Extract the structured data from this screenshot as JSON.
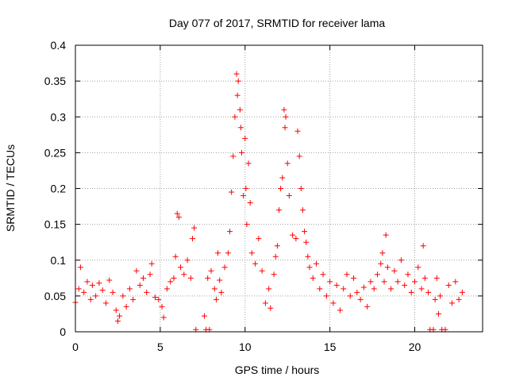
{
  "chart_data": {
    "type": "scatter",
    "title": "Day 077 of 2017, SRMTID for receiver lama",
    "xlabel": "GPS time / hours",
    "ylabel": "SRMTID / TECUs",
    "xlim": [
      0,
      24
    ],
    "ylim": [
      0,
      0.4
    ],
    "grid": true,
    "xticks": [
      0,
      5,
      10,
      15,
      20
    ],
    "xtick_labels": [
      "0",
      "5",
      "10",
      "15",
      "20"
    ],
    "yticks": [
      0,
      0.05,
      0.1,
      0.15,
      0.2,
      0.25,
      0.3,
      0.35,
      0.4
    ],
    "ytick_labels": [
      "0",
      "0.05",
      "0.1",
      "0.15",
      "0.2",
      "0.25",
      "0.3",
      "0.35",
      "0.4"
    ],
    "marker": "+",
    "color": "#ff0000",
    "series": [
      {
        "name": "SRMTID",
        "points": [
          [
            0.0,
            0.041
          ],
          [
            0.2,
            0.06
          ],
          [
            0.3,
            0.09
          ],
          [
            0.5,
            0.055
          ],
          [
            0.7,
            0.07
          ],
          [
            0.9,
            0.045
          ],
          [
            1.0,
            0.065
          ],
          [
            1.2,
            0.05
          ],
          [
            1.4,
            0.068
          ],
          [
            1.6,
            0.058
          ],
          [
            1.8,
            0.04
          ],
          [
            2.0,
            0.072
          ],
          [
            2.2,
            0.055
          ],
          [
            2.4,
            0.03
          ],
          [
            2.5,
            0.015
          ],
          [
            2.6,
            0.022
          ],
          [
            2.8,
            0.05
          ],
          [
            3.0,
            0.035
          ],
          [
            3.2,
            0.06
          ],
          [
            3.4,
            0.045
          ],
          [
            3.6,
            0.085
          ],
          [
            3.8,
            0.065
          ],
          [
            4.0,
            0.075
          ],
          [
            4.2,
            0.055
          ],
          [
            4.4,
            0.08
          ],
          [
            4.5,
            0.095
          ],
          [
            4.7,
            0.048
          ],
          [
            4.9,
            0.045
          ],
          [
            5.1,
            0.035
          ],
          [
            5.2,
            0.02
          ],
          [
            5.4,
            0.06
          ],
          [
            5.6,
            0.07
          ],
          [
            5.8,
            0.075
          ],
          [
            5.9,
            0.105
          ],
          [
            6.0,
            0.165
          ],
          [
            6.1,
            0.16
          ],
          [
            6.2,
            0.09
          ],
          [
            6.4,
            0.08
          ],
          [
            6.6,
            0.1
          ],
          [
            6.8,
            0.075
          ],
          [
            6.9,
            0.13
          ],
          [
            7.0,
            0.145
          ],
          [
            7.1,
            0.003
          ],
          [
            7.6,
            0.022
          ],
          [
            7.7,
            0.003
          ],
          [
            7.8,
            0.075
          ],
          [
            7.9,
            0.003
          ],
          [
            8.0,
            0.085
          ],
          [
            8.2,
            0.06
          ],
          [
            8.3,
            0.045
          ],
          [
            8.4,
            0.11
          ],
          [
            8.5,
            0.072
          ],
          [
            8.6,
            0.055
          ],
          [
            8.8,
            0.09
          ],
          [
            9.0,
            0.11
          ],
          [
            9.1,
            0.14
          ],
          [
            9.2,
            0.195
          ],
          [
            9.3,
            0.245
          ],
          [
            9.4,
            0.3
          ],
          [
            9.5,
            0.36
          ],
          [
            9.55,
            0.33
          ],
          [
            9.6,
            0.35
          ],
          [
            9.7,
            0.31
          ],
          [
            9.75,
            0.285
          ],
          [
            9.8,
            0.25
          ],
          [
            9.9,
            0.19
          ],
          [
            10.0,
            0.27
          ],
          [
            10.05,
            0.2
          ],
          [
            10.1,
            0.15
          ],
          [
            10.2,
            0.235
          ],
          [
            10.3,
            0.18
          ],
          [
            10.4,
            0.11
          ],
          [
            10.6,
            0.095
          ],
          [
            10.8,
            0.13
          ],
          [
            11.0,
            0.085
          ],
          [
            11.2,
            0.04
          ],
          [
            11.4,
            0.06
          ],
          [
            11.5,
            0.033
          ],
          [
            11.7,
            0.08
          ],
          [
            11.8,
            0.105
          ],
          [
            11.9,
            0.12
          ],
          [
            12.0,
            0.17
          ],
          [
            12.1,
            0.2
          ],
          [
            12.2,
            0.215
          ],
          [
            12.3,
            0.31
          ],
          [
            12.35,
            0.285
          ],
          [
            12.4,
            0.3
          ],
          [
            12.5,
            0.235
          ],
          [
            12.6,
            0.19
          ],
          [
            12.8,
            0.135
          ],
          [
            13.0,
            0.13
          ],
          [
            13.1,
            0.28
          ],
          [
            13.2,
            0.245
          ],
          [
            13.3,
            0.2
          ],
          [
            13.4,
            0.17
          ],
          [
            13.5,
            0.14
          ],
          [
            13.6,
            0.125
          ],
          [
            13.7,
            0.105
          ],
          [
            13.8,
            0.09
          ],
          [
            14.0,
            0.075
          ],
          [
            14.2,
            0.095
          ],
          [
            14.4,
            0.06
          ],
          [
            14.6,
            0.08
          ],
          [
            14.8,
            0.05
          ],
          [
            15.0,
            0.07
          ],
          [
            15.2,
            0.04
          ],
          [
            15.4,
            0.065
          ],
          [
            15.6,
            0.03
          ],
          [
            15.8,
            0.06
          ],
          [
            16.0,
            0.08
          ],
          [
            16.2,
            0.05
          ],
          [
            16.4,
            0.075
          ],
          [
            16.6,
            0.055
          ],
          [
            16.8,
            0.045
          ],
          [
            17.0,
            0.062
          ],
          [
            17.2,
            0.035
          ],
          [
            17.4,
            0.07
          ],
          [
            17.6,
            0.06
          ],
          [
            17.8,
            0.08
          ],
          [
            18.0,
            0.095
          ],
          [
            18.1,
            0.11
          ],
          [
            18.2,
            0.07
          ],
          [
            18.3,
            0.135
          ],
          [
            18.4,
            0.09
          ],
          [
            18.6,
            0.06
          ],
          [
            18.8,
            0.085
          ],
          [
            19.0,
            0.07
          ],
          [
            19.2,
            0.1
          ],
          [
            19.4,
            0.065
          ],
          [
            19.6,
            0.08
          ],
          [
            19.8,
            0.055
          ],
          [
            20.0,
            0.07
          ],
          [
            20.2,
            0.09
          ],
          [
            20.4,
            0.06
          ],
          [
            20.5,
            0.12
          ],
          [
            20.6,
            0.075
          ],
          [
            20.8,
            0.055
          ],
          [
            20.9,
            0.003
          ],
          [
            21.1,
            0.003
          ],
          [
            21.2,
            0.045
          ],
          [
            21.3,
            0.075
          ],
          [
            21.4,
            0.025
          ],
          [
            21.5,
            0.05
          ],
          [
            21.6,
            0.003
          ],
          [
            21.8,
            0.003
          ],
          [
            22.0,
            0.065
          ],
          [
            22.2,
            0.04
          ],
          [
            22.4,
            0.07
          ],
          [
            22.6,
            0.045
          ],
          [
            22.8,
            0.055
          ]
        ]
      }
    ]
  }
}
